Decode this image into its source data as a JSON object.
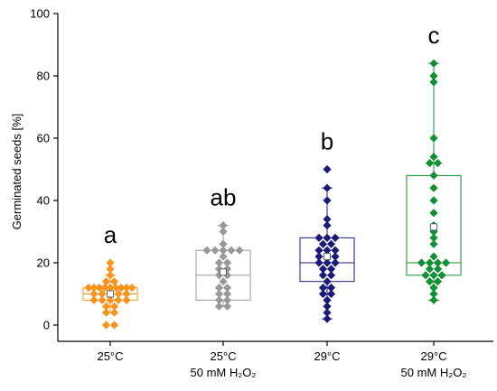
{
  "chart_data": {
    "type": "box-scatter",
    "title": "",
    "xlabel": "",
    "ylabel": "Germinated seeds [%]",
    "ylim": [
      0,
      100
    ],
    "yticks": [
      0,
      20,
      40,
      60,
      80,
      100
    ],
    "grid": false,
    "legend": "none",
    "categories": [
      {
        "label": "25°C",
        "sublabel": ""
      },
      {
        "label": "25°C",
        "sublabel": "50 mM H₂O₂"
      },
      {
        "label": "29°C",
        "sublabel": ""
      },
      {
        "label": "29°C",
        "sublabel": "50 mM H₂O₂"
      }
    ],
    "series": [
      {
        "letter": "a",
        "color": "#f7941d",
        "box": {
          "q1": 8,
          "median": 10,
          "q3": 12,
          "mean": 10,
          "whisker_low": 4,
          "whisker_high": 16
        },
        "points": [
          20,
          18,
          16,
          14,
          14,
          12,
          12,
          12,
          12,
          12,
          12,
          12,
          12,
          12,
          10,
          10,
          10,
          10,
          10,
          8,
          8,
          8,
          8,
          8,
          6,
          6,
          4,
          4,
          0,
          0
        ]
      },
      {
        "letter": "ab",
        "color": "#999999",
        "box": {
          "q1": 8,
          "median": 16,
          "q3": 24,
          "mean": 17,
          "whisker_low": 6,
          "whisker_high": 32
        },
        "points": [
          32,
          30,
          26,
          24,
          24,
          24,
          24,
          24,
          22,
          20,
          20,
          18,
          18,
          16,
          16,
          14,
          12,
          12,
          10,
          10,
          8,
          8,
          6,
          6
        ]
      },
      {
        "letter": "b",
        "color": "#1b1a7a",
        "box": {
          "q1": 14,
          "median": 20,
          "q3": 28,
          "mean": 22,
          "whisker_low": 2,
          "whisker_high": 44
        },
        "points": [
          50,
          44,
          40,
          34,
          32,
          28,
          28,
          28,
          26,
          26,
          24,
          24,
          24,
          22,
          22,
          22,
          20,
          20,
          20,
          18,
          18,
          16,
          16,
          14,
          12,
          12,
          10,
          10,
          8,
          6,
          4,
          2
        ]
      },
      {
        "letter": "c",
        "color": "#109033",
        "box": {
          "q1": 16,
          "median": 20,
          "q3": 48,
          "mean": 31.5,
          "whisker_low": 8,
          "whisker_high": 84
        },
        "points": [
          84,
          80,
          78,
          60,
          54,
          52,
          52,
          48,
          44,
          40,
          36,
          32,
          30,
          28,
          26,
          22,
          20,
          20,
          20,
          20,
          18,
          18,
          16,
          16,
          16,
          14,
          14,
          12,
          10,
          8
        ]
      }
    ]
  }
}
